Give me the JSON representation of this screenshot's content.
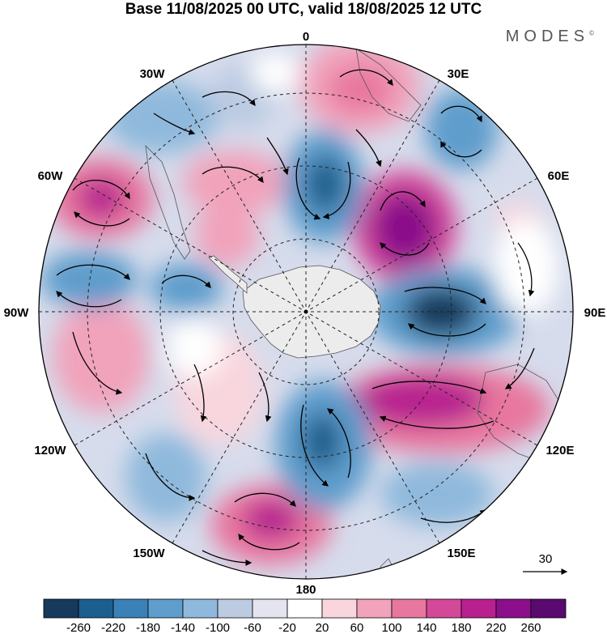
{
  "title": "Base 11/08/2025 00 UTC, valid 18/08/2025 12 UTC",
  "brand": "MODES",
  "brand_mark": "©",
  "longitude_labels": {
    "lon_0": "0",
    "lon_30e": "30E",
    "lon_60e": "60E",
    "lon_90e": "90E",
    "lon_120e": "120E",
    "lon_150e": "150E",
    "lon_180": "180",
    "lon_150w": "150W",
    "lon_120w": "120W",
    "lon_90w": "90W",
    "lon_60w": "60W",
    "lon_30w": "30W"
  },
  "vector_reference": "30",
  "colorbar": {
    "ticks": [
      "-260",
      "-220",
      "-180",
      "-140",
      "-100",
      "-60",
      "-20",
      "20",
      "60",
      "100",
      "140",
      "180",
      "220",
      "260"
    ],
    "colors": [
      "#163a5c",
      "#1c5e8e",
      "#3a81b8",
      "#5e9dcc",
      "#8fb9dc",
      "#bccbe2",
      "#e4e4f0",
      "#ffffff",
      "#f9d6de",
      "#f1a3bb",
      "#e8779f",
      "#d4489a",
      "#b8208f",
      "#8b0f8a",
      "#5a0a6e"
    ]
  },
  "colors": {
    "land": "#ececec",
    "grid": "#222222"
  }
}
